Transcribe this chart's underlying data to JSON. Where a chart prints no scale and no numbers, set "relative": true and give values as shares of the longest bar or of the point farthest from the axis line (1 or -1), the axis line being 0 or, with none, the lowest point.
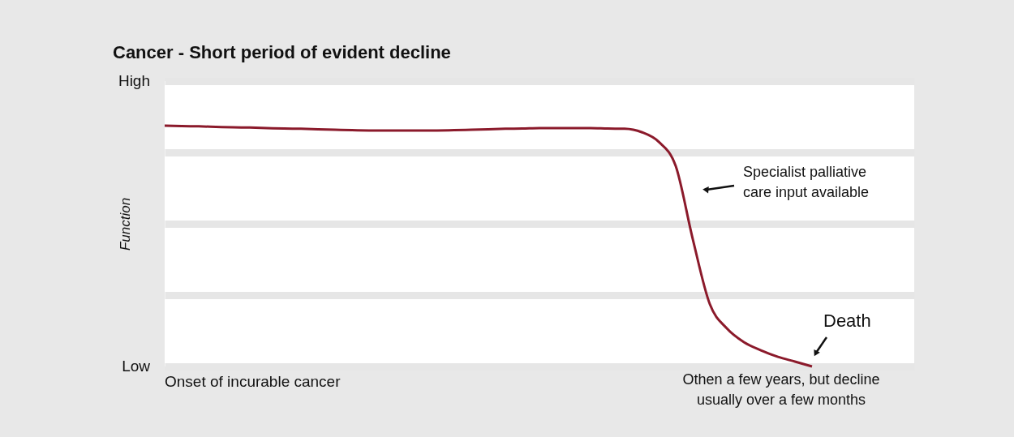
{
  "chart_data": {
    "type": "line",
    "relative": true,
    "title": "Cancer - Short period of evident decline",
    "ylabel": "Function",
    "categories": [
      null,
      null,
      null,
      null,
      null,
      null,
      null,
      null,
      null,
      null,
      null,
      null,
      null,
      null,
      null,
      null,
      null,
      null,
      null,
      null,
      null,
      null,
      null,
      null,
      null,
      null,
      null,
      null,
      null,
      null,
      null,
      null,
      null,
      null,
      null,
      null,
      null,
      null,
      null,
      null,
      null,
      null,
      null,
      null,
      null
    ],
    "series": [
      {
        "color": "#8b1a2b",
        "values": [
          1.0,
          0.998,
          0.997,
          0.995,
          0.993,
          0.992,
          0.99,
          0.988,
          0.987,
          0.985,
          0.983,
          0.981,
          0.98,
          0.98,
          0.98,
          0.98,
          0.98,
          0.981,
          0.983,
          0.985,
          0.987,
          0.988,
          0.99,
          0.99,
          0.99,
          0.99,
          0.988,
          0.987,
          0.973,
          0.933,
          0.832,
          0.529,
          0.259,
          0.158,
          0.101,
          0.067,
          0.04,
          0.02,
          0.0,
          null,
          null,
          null,
          null,
          null,
          null
        ]
      }
    ],
    "grid": "y",
    "marker": "none",
    "line_style": "solid",
    "annotations": [
      "High",
      "Low",
      "Onset of incurable cancer",
      "Othen a few years, but decline\nusually over a few months",
      "Specialist palliative\ncare input available",
      "Death"
    ]
  }
}
